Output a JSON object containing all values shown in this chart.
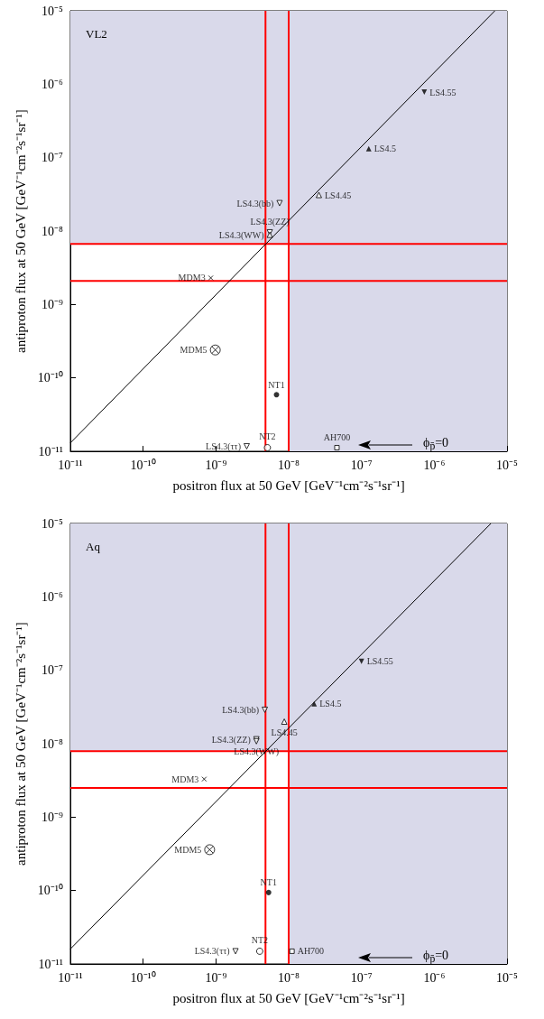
{
  "chart_data": [
    {
      "type": "scatter",
      "title": "VL2",
      "xlabel": "positron flux at 50 GeV [GeV⁻¹cm⁻²s⁻¹sr⁻¹]",
      "ylabel": "antiproton flux at 50 GeV [GeV⁻¹cm⁻²s⁻¹sr⁻¹]",
      "log": "xy",
      "xlim": [
        1e-11,
        1e-05
      ],
      "ylim": [
        1e-11,
        1e-05
      ],
      "xticks": [
        {
          "value": 1e-11,
          "label": "10⁻¹¹"
        },
        {
          "value": 1e-10,
          "label": "10⁻¹⁰"
        },
        {
          "value": 1e-09,
          "label": "10⁻⁹"
        },
        {
          "value": 1e-08,
          "label": "10⁻⁸"
        },
        {
          "value": 1e-07,
          "label": "10⁻⁷"
        },
        {
          "value": 1e-06,
          "label": "10⁻⁶"
        },
        {
          "value": 1e-05,
          "label": "10⁻⁵"
        }
      ],
      "yticks": [
        {
          "value": 1e-11,
          "label": "10⁻¹¹"
        },
        {
          "value": 1e-10,
          "label": "10⁻¹⁰"
        },
        {
          "value": 1e-09,
          "label": "10⁻⁹"
        },
        {
          "value": 1e-08,
          "label": "10⁻⁸"
        },
        {
          "value": 1e-07,
          "label": "10⁻⁷"
        },
        {
          "value": 1e-06,
          "label": "10⁻⁶"
        },
        {
          "value": 1e-05,
          "label": "10⁻⁵"
        }
      ],
      "bands": [
        {
          "axis": "x",
          "from": 1e-08,
          "to": 1e-05,
          "color": "#d9d9ea"
        },
        {
          "axis": "y",
          "from": 6.7e-09,
          "to": 1e-05,
          "color": "#d9d9ea"
        }
      ],
      "ref_lines": [
        {
          "axis": "x",
          "value": 4.8e-09,
          "color": "#ff0000"
        },
        {
          "axis": "x",
          "value": 1e-08,
          "color": "#ff0000"
        },
        {
          "axis": "y",
          "value": 2.1e-09,
          "color": "#ff0000"
        },
        {
          "axis": "y",
          "value": 6.7e-09,
          "color": "#ff0000"
        }
      ],
      "annotations": [
        "ϕ$_{p̄}$=0"
      ],
      "series": [
        {
          "type": "line",
          "color": "#000000",
          "marker": "none",
          "x": [
            1e-11,
            6.8e-06
          ],
          "values": [
            1.3e-11,
            1e-05
          ]
        },
        {
          "name": "LS4.55",
          "color": "#000000",
          "marker": "triangle-down",
          "x": [
            7.3e-07
          ],
          "values": [
            7.8e-07
          ]
        },
        {
          "name": "LS4.5",
          "color": "#000000",
          "marker": "triangle",
          "x": [
            1.26e-07
          ],
          "values": [
            1.32e-07
          ]
        },
        {
          "name": "LS4.45",
          "color": "#000000",
          "marker": "triangle-open",
          "x": [
            2.6e-08
          ],
          "values": [
            3.1e-08
          ]
        },
        {
          "name": "LS4.3(bb)",
          "color": "#000000",
          "marker": "triangle-down-open",
          "x": [
            7.5e-09
          ],
          "values": [
            2.4e-08
          ]
        },
        {
          "name": "LS4.3(ZZ)",
          "color": "#000000",
          "marker": "triangle-down-open",
          "x": [
            5.5e-09
          ],
          "values": [
            9.6e-09
          ]
        },
        {
          "name": "LS4.3(WW)",
          "color": "#000000",
          "marker": "triangle-open",
          "x": [
            5.5e-09
          ],
          "values": [
            8.9e-09
          ]
        },
        {
          "name": "MDM3",
          "color": "#000000",
          "marker": "cross",
          "x": [
            8.5e-10
          ],
          "values": [
            2.3e-09
          ]
        },
        {
          "name": "MDM5",
          "color": "#000000",
          "x": [
            9.8e-10
          ],
          "values": [
            2.4e-10
          ]
        },
        {
          "name": "NT1",
          "color": "#000000",
          "marker": "circle",
          "x": [
            6.8e-09
          ],
          "values": [
            5.9e-11
          ]
        },
        {
          "name": "NT2",
          "color": "#000000",
          "marker": "circle-open",
          "x": [
            5.1e-09
          ],
          "values": [
            1.12e-11
          ]
        },
        {
          "name": "LS4.3(ττ)",
          "color": "#000000",
          "marker": "triangle-down-open",
          "x": [
            2.65e-09
          ],
          "values": [
            1.17e-11
          ]
        },
        {
          "name": "AH700",
          "color": "#000000",
          "marker": "square-open",
          "x": [
            4.6e-08
          ],
          "values": [
            1.12e-11
          ]
        }
      ]
    },
    {
      "type": "scatter",
      "title": "Aq",
      "xlabel": "positron flux at 50 GeV [GeV⁻¹cm⁻²s⁻¹sr⁻¹]",
      "ylabel": "antiproton flux at 50 GeV [GeV⁻¹cm⁻²s⁻¹sr⁻¹]",
      "log": "xy",
      "xlim": [
        1e-11,
        1e-05
      ],
      "ylim": [
        1e-11,
        1e-05
      ],
      "xticks": [
        {
          "value": 1e-11,
          "label": "10⁻¹¹"
        },
        {
          "value": 1e-10,
          "label": "10⁻¹⁰"
        },
        {
          "value": 1e-09,
          "label": "10⁻⁹"
        },
        {
          "value": 1e-08,
          "label": "10⁻⁸"
        },
        {
          "value": 1e-07,
          "label": "10⁻⁷"
        },
        {
          "value": 1e-06,
          "label": "10⁻⁶"
        },
        {
          "value": 1e-05,
          "label": "10⁻⁵"
        }
      ],
      "yticks": [
        {
          "value": 1e-11,
          "label": "10⁻¹¹"
        },
        {
          "value": 1e-10,
          "label": "10⁻¹⁰"
        },
        {
          "value": 1e-09,
          "label": "10⁻⁹"
        },
        {
          "value": 1e-08,
          "label": "10⁻⁸"
        },
        {
          "value": 1e-07,
          "label": "10⁻⁷"
        },
        {
          "value": 1e-06,
          "label": "10⁻⁶"
        },
        {
          "value": 1e-05,
          "label": "10⁻⁵"
        }
      ],
      "bands": [
        {
          "axis": "x",
          "from": 1e-08,
          "to": 1e-05,
          "color": "#d9d9ea"
        },
        {
          "axis": "y",
          "from": 7.9e-09,
          "to": 1e-05,
          "color": "#d9d9ea"
        }
      ],
      "ref_lines": [
        {
          "axis": "x",
          "value": 4.8e-09,
          "color": "#ff0000"
        },
        {
          "axis": "x",
          "value": 1e-08,
          "color": "#ff0000"
        },
        {
          "axis": "y",
          "value": 2.5e-09,
          "color": "#ff0000"
        },
        {
          "axis": "y",
          "value": 7.9e-09,
          "color": "#ff0000"
        }
      ],
      "annotations": [
        "ϕ$_{p̄}$=0"
      ],
      "series": [
        {
          "type": "line",
          "color": "#000000",
          "marker": "none",
          "x": [
            1e-11,
            6e-06
          ],
          "values": [
            1.6e-11,
            1e-05
          ]
        },
        {
          "name": "LS4.55",
          "color": "#000000",
          "marker": "triangle-down",
          "x": [
            1e-07
          ],
          "values": [
            1.32e-07
          ]
        },
        {
          "name": "LS4.5",
          "color": "#000000",
          "marker": "triangle",
          "x": [
            2.24e-08
          ],
          "values": [
            3.5e-08
          ]
        },
        {
          "name": "LS4.45",
          "color": "#000000",
          "marker": "triangle-open",
          "x": [
            8.7e-09
          ],
          "values": [
            2e-08
          ]
        },
        {
          "name": "LS4.3(bb)",
          "color": "#000000",
          "marker": "triangle-down-open",
          "x": [
            4.7e-09
          ],
          "values": [
            2.9e-08
          ]
        },
        {
          "name": "LS4.3(ZZ)",
          "color": "#000000",
          "marker": "triangle-down-open",
          "x": [
            3.6e-09
          ],
          "values": [
            1.15e-08
          ]
        },
        {
          "name": "LS4.3(WW)",
          "color": "#000000",
          "marker": "triangle-down-open",
          "x": [
            3.6e-09
          ],
          "values": [
            1.08e-08
          ]
        },
        {
          "name": "MDM3",
          "color": "#000000",
          "marker": "cross",
          "x": [
            6.9e-10
          ],
          "values": [
            3.3e-09
          ]
        },
        {
          "name": "MDM5",
          "color": "#000000",
          "x": [
            8.2e-10
          ],
          "values": [
            3.6e-10
          ]
        },
        {
          "name": "NT1",
          "color": "#000000",
          "marker": "circle",
          "x": [
            5.3e-09
          ],
          "values": [
            9.4e-11
          ]
        },
        {
          "name": "NT2",
          "color": "#000000",
          "marker": "circle-open",
          "x": [
            4e-09
          ],
          "values": [
            1.49e-11
          ]
        },
        {
          "name": "LS4.3(ττ)",
          "color": "#000000",
          "marker": "triangle-down-open",
          "x": [
            1.86e-09
          ],
          "values": [
            1.49e-11
          ]
        },
        {
          "name": "AH700",
          "color": "#000000",
          "marker": "square-open",
          "x": [
            1.11e-08
          ],
          "values": [
            1.49e-11
          ]
        }
      ]
    }
  ]
}
